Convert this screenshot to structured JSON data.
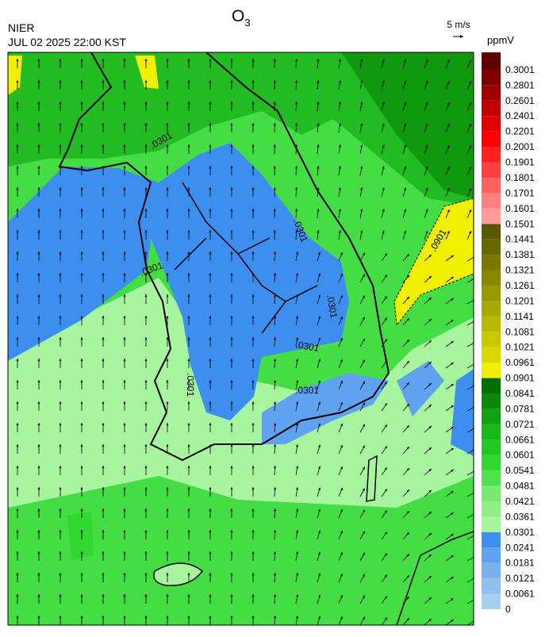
{
  "header": {
    "title": "O",
    "title_sub": "3",
    "agency": "NIER",
    "datetime": "JUL 02 2025 22:00 KST",
    "wind_ref": "5 m/s"
  },
  "colorbar": {
    "unit": "ppmV",
    "ticks": [
      0,
      0.0061,
      0.0121,
      0.0181,
      0.0241,
      0.0301,
      0.0361,
      0.0421,
      0.0481,
      0.0541,
      0.0601,
      0.0661,
      0.0721,
      0.0781,
      0.0841,
      0.0901,
      0.0961,
      0.1021,
      0.1081,
      0.1141,
      0.1201,
      0.1261,
      0.1321,
      0.1381,
      0.1441,
      0.1501,
      0.1601,
      0.1701,
      0.1801,
      0.1901,
      0.2001,
      0.2201,
      0.2401,
      0.2601,
      0.2801,
      0.3001
    ],
    "colors": [
      "#a6cff0",
      "#8fc0ef",
      "#78b1ee",
      "#5fa2ef",
      "#3d8fef",
      "#a8f5a0",
      "#90f088",
      "#78eb70",
      "#50e050",
      "#30d830",
      "#20c820",
      "#18b818",
      "#10a010",
      "#0a880a",
      "#066e06",
      "#f0f000",
      "#d8d800",
      "#c8c800",
      "#b8b800",
      "#a8a800",
      "#989800",
      "#888800",
      "#787800",
      "#686800",
      "#585800",
      "#ff9a9a",
      "#ff8080",
      "#ff6060",
      "#ff4040",
      "#ff2020",
      "#ff0000",
      "#e00000",
      "#c00000",
      "#a00000",
      "#800000",
      "#600000"
    ]
  },
  "map": {
    "contour_labels": [
      ".0301",
      ".0301",
      ".0301",
      ".0301",
      ".0301",
      ".0301",
      ".0901",
      ".0301"
    ]
  }
}
